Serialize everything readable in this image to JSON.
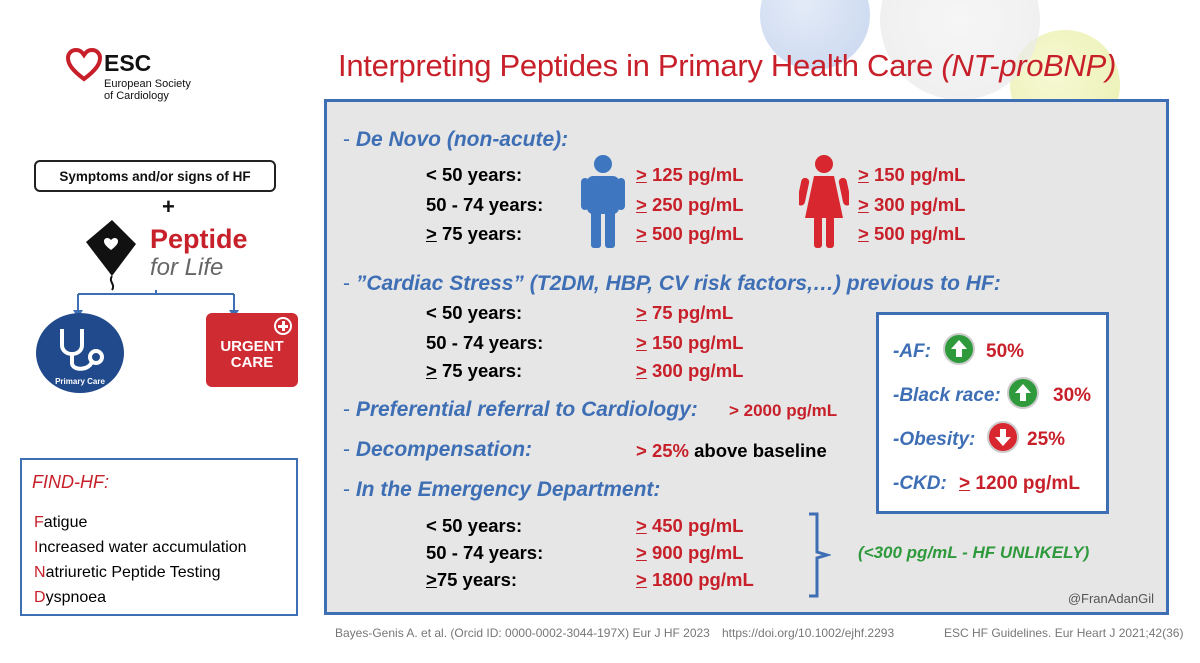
{
  "colors": {
    "accent_blue": "#3e6fb5",
    "accent_red": "#c8202a",
    "green": "#2e9a3c",
    "panel": "#e6e6e6"
  },
  "logo": {
    "abbr": "ESC",
    "line1": "European Society",
    "line2": "of Cardiology"
  },
  "left": {
    "symptoms": "Symptoms and/or signs of  HF",
    "plus": "+",
    "peptide_title": "Peptide",
    "peptide_sub": "for Life",
    "primary_care": "Primary Care",
    "urgent1": "URGENT",
    "urgent2": "CARE"
  },
  "title": {
    "main": "Interpreting Peptides in Primary Health Care ",
    "paren": "(NT-proBNP)"
  },
  "denovo": {
    "dash": "- ",
    "heading": "De Novo (non-acute):",
    "rows": [
      {
        "age": "< 50 years:",
        "male_sym": ">",
        "male": " 125 pg/mL",
        "female_sym": ">",
        "female": " 150 pg/mL"
      },
      {
        "age": "50 - 74 years:",
        "male_sym": ">",
        "male": " 250 pg/mL",
        "female_sym": ">",
        "female": " 300 pg/mL"
      },
      {
        "age_sym": ">",
        "age": " 75 years:",
        "male_sym": ">",
        "male": " 500 pg/mL",
        "female_sym": ">",
        "female": " 500 pg/mL"
      }
    ]
  },
  "stress": {
    "dash": "- ",
    "heading": "”Cardiac Stress” (T2DM, HBP, CV risk factors,…) previous to HF:",
    "rows": [
      {
        "age": "< 50 years:",
        "sym": ">",
        "val": " 75 pg/mL"
      },
      {
        "age": "50 - 74 years:",
        "sym": ">",
        "val": " 150 pg/mL"
      },
      {
        "age_sym": ">",
        "age": " 75 years:",
        "sym": ">",
        "val": " 300 pg/mL"
      }
    ]
  },
  "referral": {
    "dash": "- ",
    "heading": "Preferential referral to Cardiology:",
    "value": "> 2000 pg/mL"
  },
  "decomp": {
    "dash": "- ",
    "heading": "Decompensation:",
    "value": "> 25%",
    "suffix": " above baseline"
  },
  "emergency": {
    "dash": "- ",
    "heading": "In the Emergency Department:",
    "rows": [
      {
        "age": "< 50 years:",
        "sym": ">",
        "val": " 450 pg/mL"
      },
      {
        "age": "50 - 74 years:",
        "sym": ">",
        "val": " 900 pg/mL"
      },
      {
        "age_sym": ">",
        "age": "75 years:",
        "sym": ">",
        "val": " 1800 pg/mL"
      }
    ],
    "note": "(<300 pg/mL - HF UNLIKELY)"
  },
  "modifiers": {
    "af_label": "-AF:",
    "af_value": "50%",
    "black_label": "-Black race:",
    "black_value": "30%",
    "obesity_label": "-Obesity:",
    "obesity_value": "25%",
    "ckd_label": "-CKD:",
    "ckd_sym": ">",
    "ckd_value": " 1200 pg/mL"
  },
  "findhf": {
    "heading": "FIND-HF:",
    "items": [
      {
        "first": "F",
        "rest": "atigue"
      },
      {
        "first": "I",
        "rest": "ncreased water accumulation"
      },
      {
        "first": "N",
        "rest": "atriuretic Peptide Testing"
      },
      {
        "first": "D",
        "rest": "yspnoea"
      }
    ]
  },
  "handle": "@FranAdanGil",
  "footer": {
    "ref1": "Bayes-Genis A. et al. (Orcid ID: 0000-0002-3044-197X) Eur J HF 2023",
    "ref2": "https://doi.org/10.1002/ejhf.2293",
    "ref3": "ESC HF Guidelines. Eur Heart J 2021;42(36)"
  }
}
